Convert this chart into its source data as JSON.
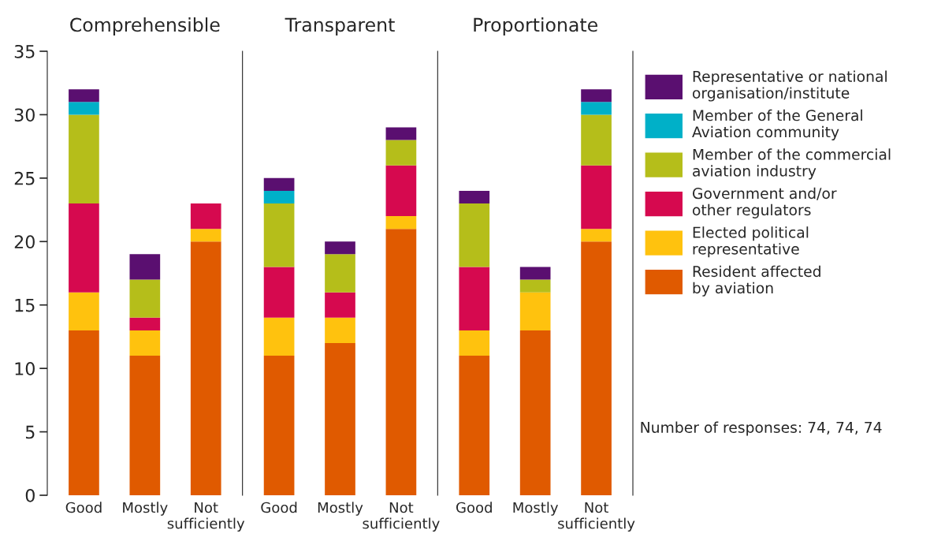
{
  "chart_data": [
    {
      "type": "bar",
      "stacked": true,
      "title": "Comprehensible",
      "categories": [
        "Good",
        "Mostly",
        "Not\nsufficiently"
      ],
      "ylim": [
        0,
        35
      ],
      "yticks": [
        0,
        5,
        10,
        15,
        20,
        25,
        30,
        35
      ],
      "grid": false,
      "series": [
        {
          "color": "#e05a00",
          "values": [
            13,
            11,
            20
          ]
        },
        {
          "color": "#ffc20e",
          "values": [
            3,
            2,
            1
          ]
        },
        {
          "color": "#d6094f",
          "values": [
            7,
            1,
            2
          ]
        },
        {
          "color": "#b5be1a",
          "values": [
            7,
            3,
            0
          ]
        },
        {
          "color": "#00b0c8",
          "values": [
            1,
            0,
            0
          ]
        },
        {
          "color": "#5a0f70",
          "values": [
            1,
            2,
            0
          ]
        }
      ]
    },
    {
      "type": "bar",
      "stacked": true,
      "title": "Transparent",
      "categories": [
        "Good",
        "Mostly",
        "Not\nsufficiently"
      ],
      "ylim": [
        0,
        35
      ],
      "tick_labels": "x",
      "grid": false,
      "series": [
        {
          "color": "#e05a00",
          "values": [
            11,
            12,
            21
          ]
        },
        {
          "color": "#ffc20e",
          "values": [
            3,
            2,
            1
          ]
        },
        {
          "color": "#d6094f",
          "values": [
            4,
            2,
            4
          ]
        },
        {
          "color": "#b5be1a",
          "values": [
            5,
            3,
            2
          ]
        },
        {
          "color": "#00b0c8",
          "values": [
            1,
            0,
            0
          ]
        },
        {
          "color": "#5a0f70",
          "values": [
            1,
            1,
            1
          ]
        }
      ]
    },
    {
      "type": "bar",
      "stacked": true,
      "title": "Proportionate",
      "categories": [
        "Good",
        "Mostly",
        "Not\nsufficiently"
      ],
      "ylim": [
        0,
        35
      ],
      "tick_labels": "x",
      "legend": "right",
      "grid": false,
      "annotations": [
        "Number of responses: 74, 74, 74"
      ],
      "series": [
        {
          "name": "Resident affected\nby aviation",
          "color": "#e05a00",
          "values": [
            11,
            13,
            20
          ]
        },
        {
          "name": "Elected political\nrepresentative",
          "color": "#ffc20e",
          "values": [
            2,
            3,
            1
          ]
        },
        {
          "name": "Government and/or\nother regulators",
          "color": "#d6094f",
          "values": [
            5,
            0,
            5
          ]
        },
        {
          "name": "Member of the commercial\naviation industry",
          "color": "#b5be1a",
          "values": [
            5,
            1,
            4
          ]
        },
        {
          "name": "Member of the General\nAviation community",
          "color": "#00b0c8",
          "values": [
            0,
            0,
            1
          ]
        },
        {
          "name": "Representative or national\norganisation/institute",
          "color": "#5a0f70",
          "values": [
            1,
            1,
            1
          ]
        }
      ]
    }
  ]
}
